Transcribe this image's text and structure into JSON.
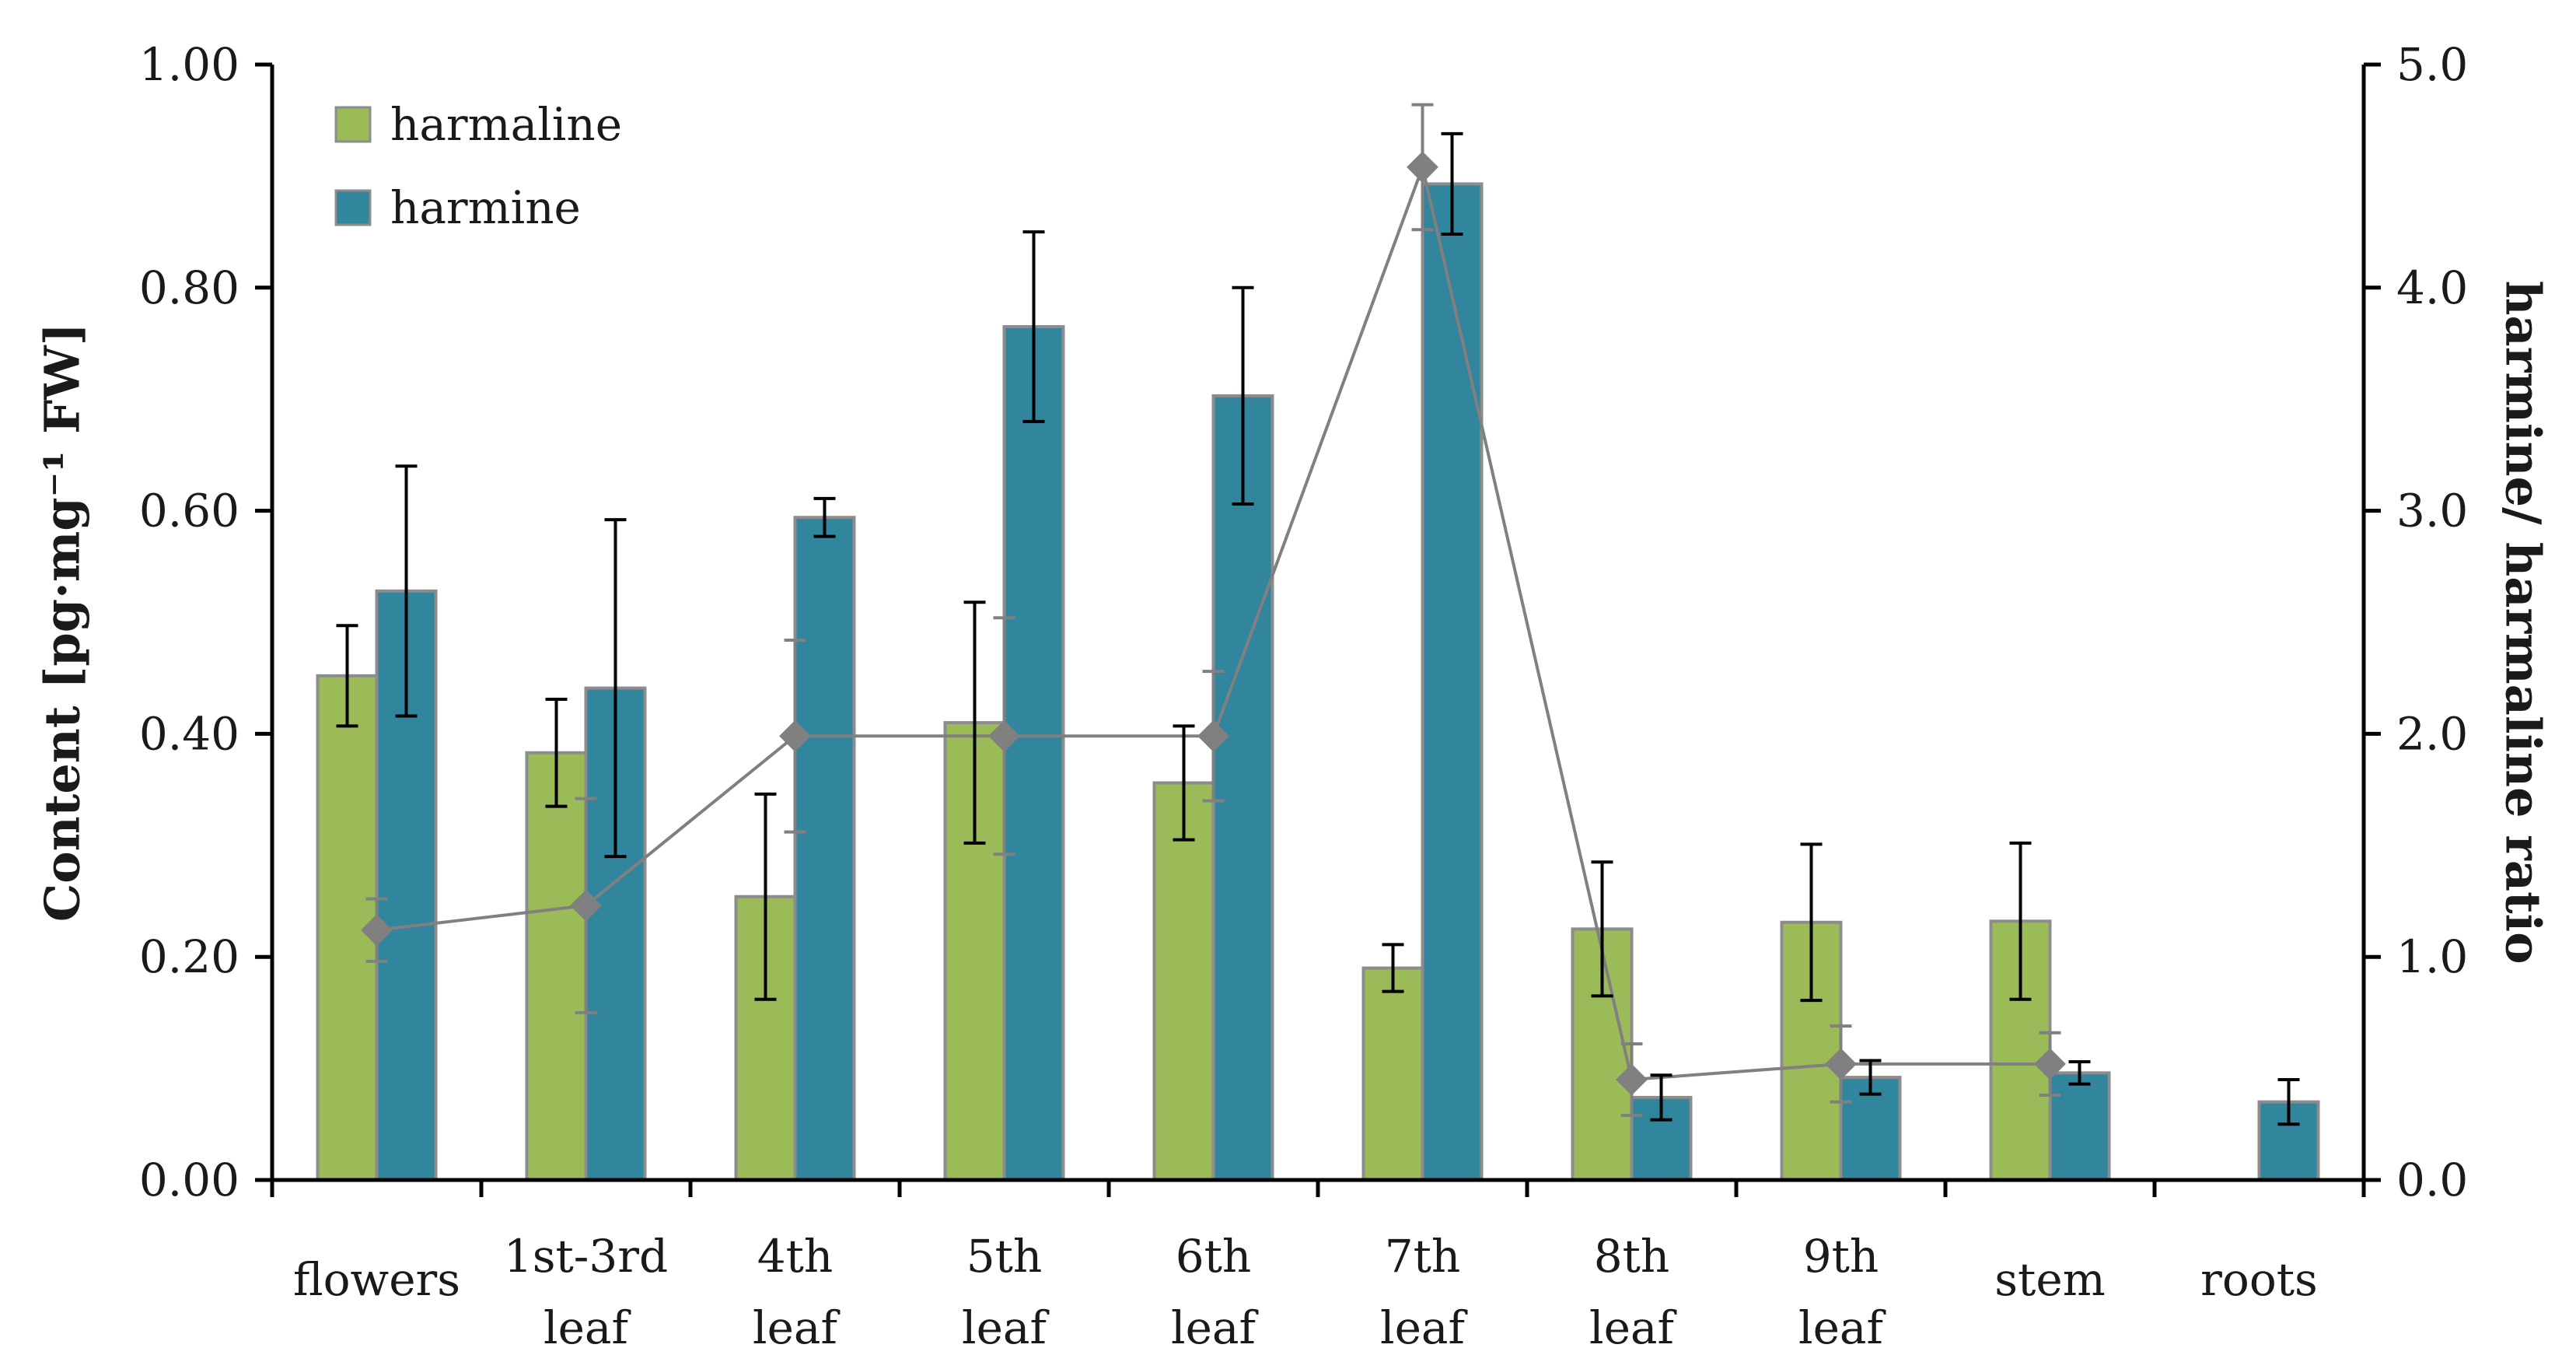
{
  "chart_data": {
    "type": "bar",
    "categories": [
      [
        "flowers"
      ],
      [
        "1st-3rd",
        "leaf"
      ],
      [
        "4th",
        "leaf"
      ],
      [
        "5th",
        "leaf"
      ],
      [
        "6th",
        "leaf"
      ],
      [
        "7th",
        "leaf"
      ],
      [
        "8th",
        "leaf"
      ],
      [
        "9th",
        "leaf"
      ],
      [
        "stem"
      ],
      [
        "roots"
      ]
    ],
    "series": [
      {
        "name": "harmaline",
        "color": "#9bbb59",
        "values": [
          0.452,
          0.383,
          0.254,
          0.41,
          0.356,
          0.19,
          0.225,
          0.231,
          0.232,
          null
        ],
        "errors": [
          0.045,
          0.048,
          0.092,
          0.108,
          0.051,
          0.021,
          0.06,
          0.07,
          0.07,
          null
        ]
      },
      {
        "name": "harmine",
        "color": "#31859c",
        "values": [
          0.528,
          0.441,
          0.594,
          0.765,
          0.703,
          0.893,
          0.074,
          0.092,
          0.096,
          0.07
        ],
        "errors": [
          0.112,
          0.151,
          0.017,
          0.085,
          0.097,
          0.045,
          0.02,
          0.015,
          0.01,
          0.02
        ]
      }
    ],
    "ratio": {
      "name": "harmine/harmaline ratio",
      "color": "#808080",
      "values": [
        1.12,
        1.23,
        1.99,
        1.99,
        1.99,
        4.54,
        0.45,
        0.52,
        0.52,
        null
      ],
      "errors": [
        0.14,
        0.48,
        0.43,
        0.53,
        0.29,
        0.28,
        0.16,
        0.17,
        0.14,
        null
      ]
    },
    "ylabel": "Content [pg·mg⁻¹ FW]",
    "y2label": "harmine/ harmaline ratio",
    "ylim": [
      0,
      1.0
    ],
    "y2lim": [
      0,
      5.0
    ],
    "yticks": [
      "0.00",
      "0.20",
      "0.40",
      "0.60",
      "0.80",
      "1.00"
    ],
    "y2ticks": [
      "0.0",
      "1.0",
      "2.0",
      "3.0",
      "4.0",
      "5.0"
    ],
    "legend_position": "top-left"
  }
}
